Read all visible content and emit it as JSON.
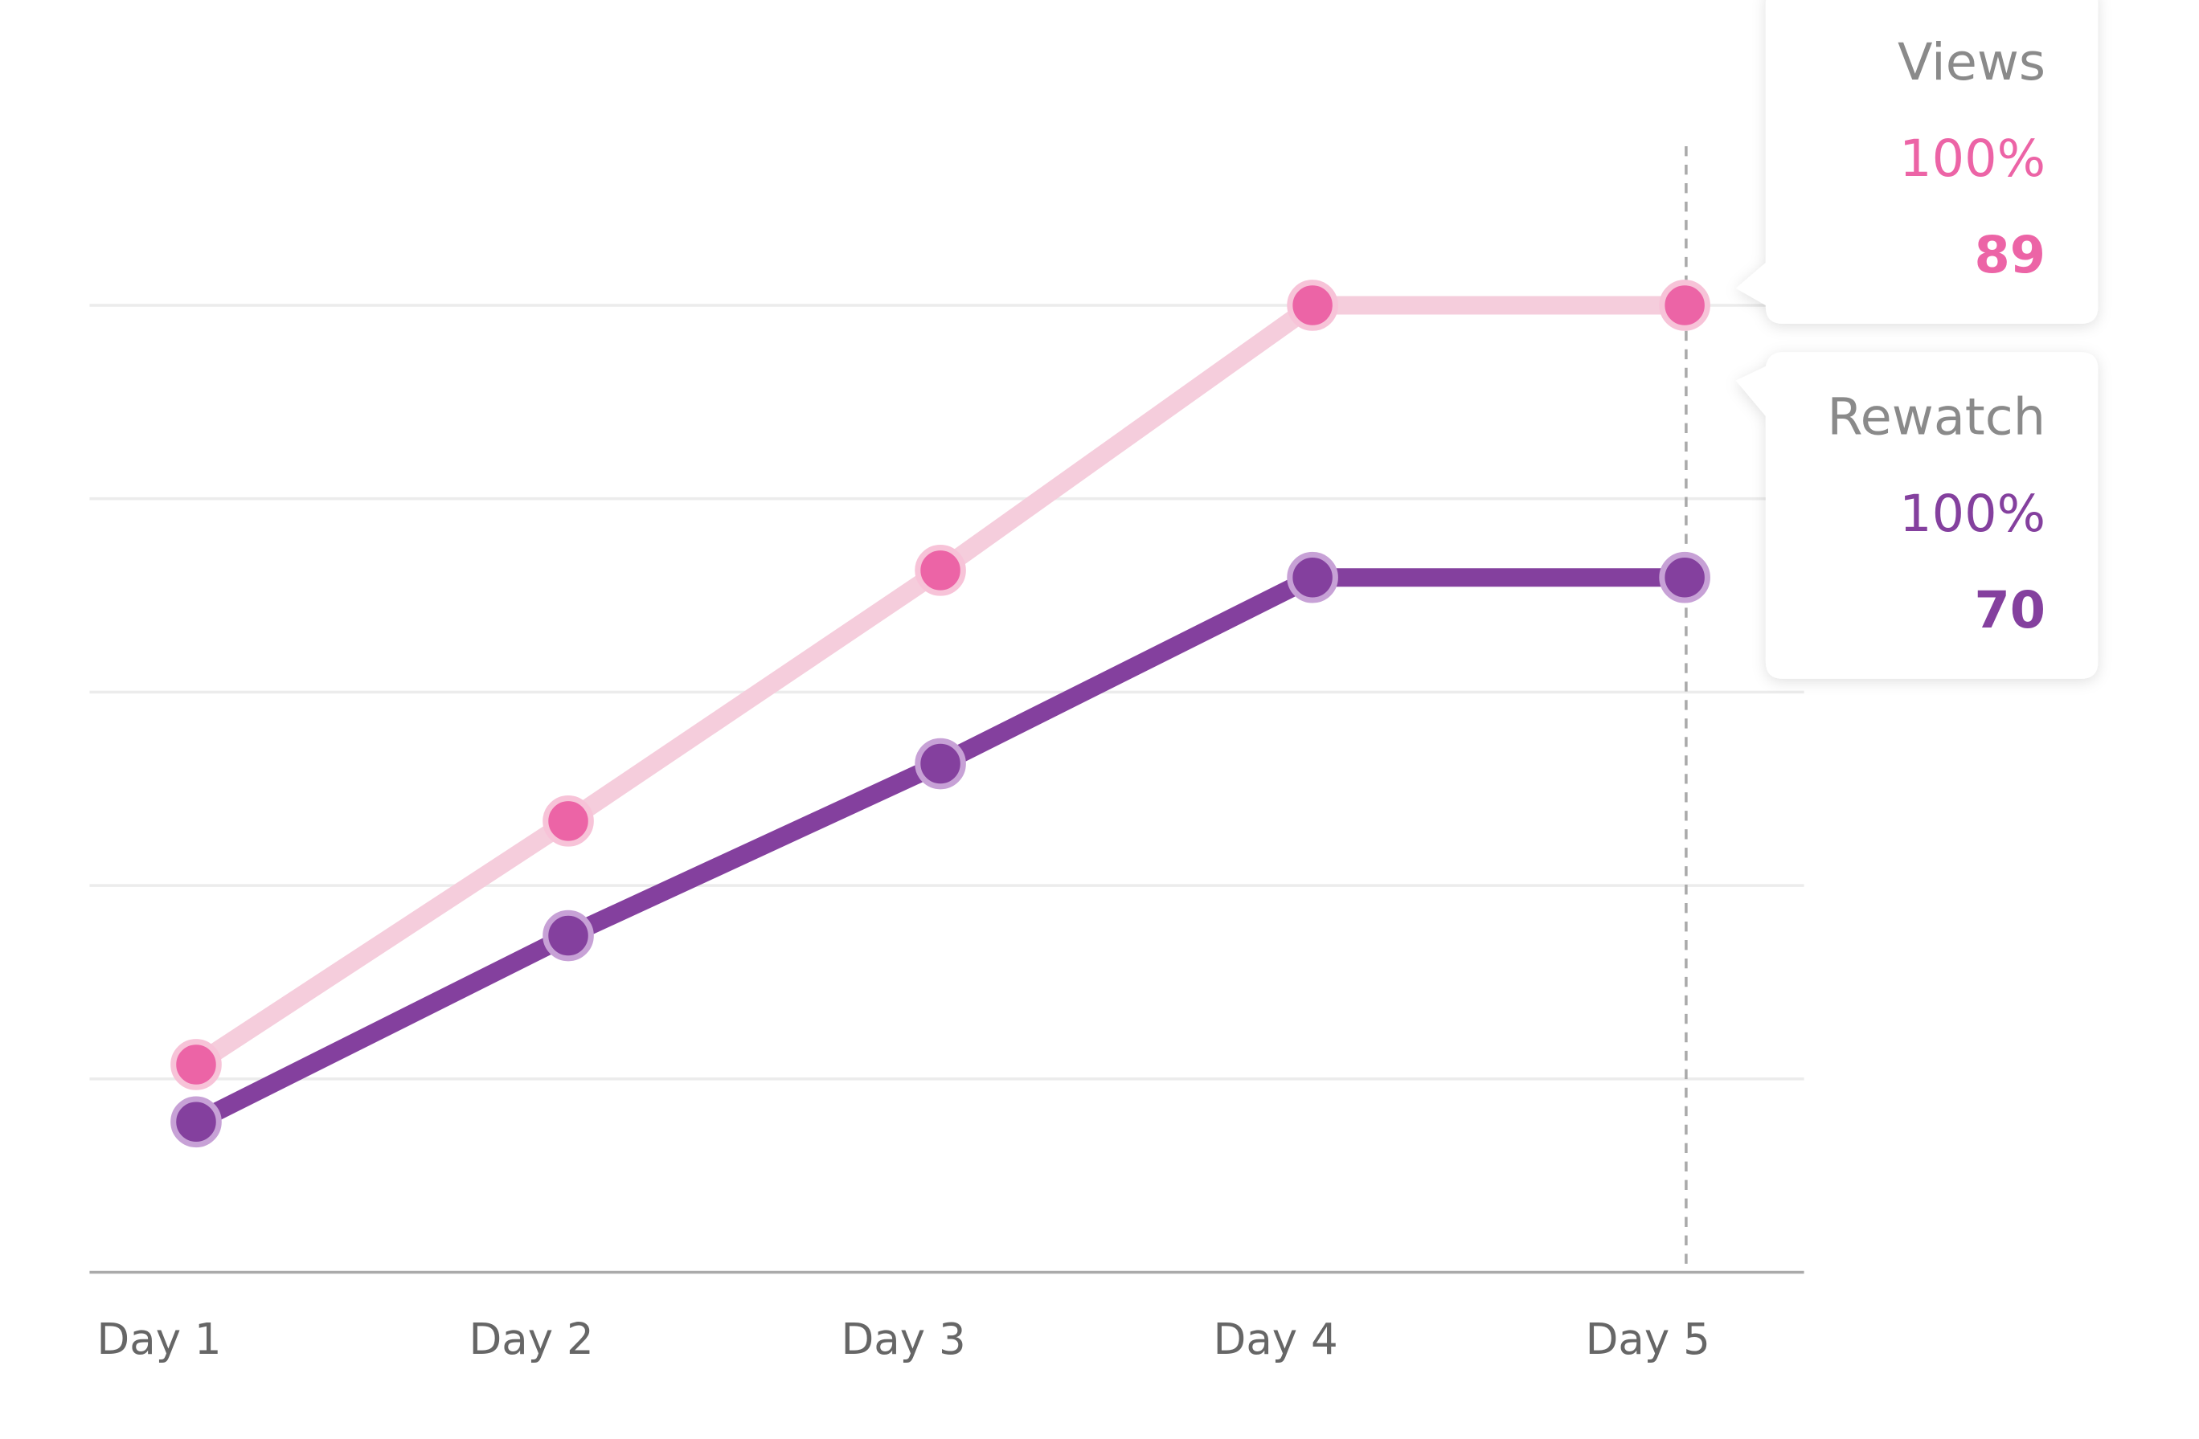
{
  "chart_data": {
    "type": "line",
    "categories": [
      "Day 1",
      "Day 2",
      "Day 3",
      "Day 4",
      "Day 5"
    ],
    "series": [
      {
        "name": "Views",
        "color": "#ec64a6",
        "line_color": "#f5cddc",
        "values": [
          36,
          53,
          70.5,
          89,
          89
        ]
      },
      {
        "name": "Rewatch",
        "color": "#84409e",
        "line_color": "#84409e",
        "values": [
          32,
          45,
          57,
          70,
          70
        ]
      }
    ],
    "ylim": [
      21.5,
      89
    ],
    "yticks": [
      21.5,
      35,
      48.5,
      62,
      75.5,
      89
    ],
    "grid": true,
    "tooltip_percents": [
      {
        "value": 100,
        "label": "100%"
      },
      {
        "value": 100,
        "label": "100%"
      }
    ]
  }
}
